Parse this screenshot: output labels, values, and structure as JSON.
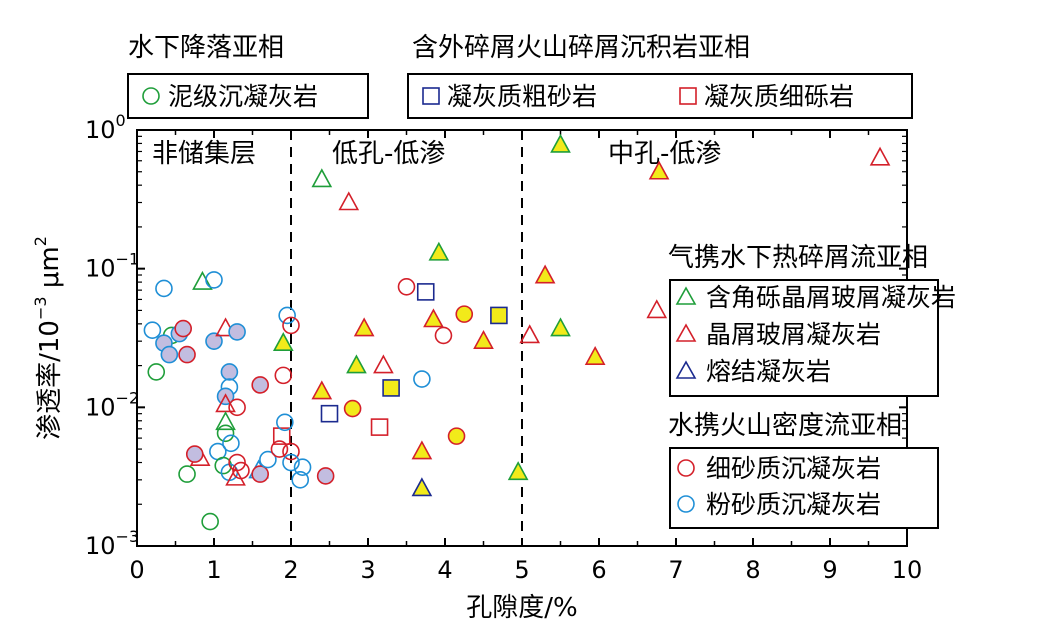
{
  "colors": {
    "green": "#1f9e3a",
    "red": "#d4202a",
    "blue": "#1f8fd6",
    "navy": "#1b2a8f",
    "yellow": "#f2ea1a",
    "lavender": "#c2bde0",
    "axis": "#000000"
  },
  "legend_top": {
    "group1": {
      "title": "水下降落亚相",
      "items": [
        {
          "label": "泥级沉凝灰岩",
          "marker": "circle",
          "color": "#1f9e3a"
        }
      ]
    },
    "group2": {
      "title": "含外碎屑火山碎屑沉积岩亚相",
      "items": [
        {
          "label": "凝灰质粗砂岩",
          "marker": "square",
          "color": "#1b2a8f"
        },
        {
          "label": "凝灰质细砾岩",
          "marker": "square",
          "color": "#d4202a"
        }
      ]
    }
  },
  "legend_right": {
    "group3": {
      "title": "气携水下热碎屑流亚相",
      "items": [
        {
          "label": "含角砾晶屑玻屑凝灰岩",
          "marker": "triangle",
          "color": "#1f9e3a"
        },
        {
          "label": "晶屑玻屑凝灰岩",
          "marker": "triangle",
          "color": "#d4202a"
        },
        {
          "label": "熔结凝灰岩",
          "marker": "triangle",
          "color": "#1b2a8f"
        }
      ]
    },
    "group4": {
      "title": "水携火山密度流亚相",
      "items": [
        {
          "label": "细砂质沉凝灰岩",
          "marker": "circle",
          "color": "#d4202a"
        },
        {
          "label": "粉砂质沉凝灰岩",
          "marker": "circle",
          "color": "#1f8fd6"
        }
      ]
    }
  },
  "regions": {
    "non_reservoir": "非储集层",
    "low_low": "低孔-低渗",
    "mid_low": "中孔-低渗"
  },
  "chart_data": {
    "type": "scatter",
    "xlabel": "孔隙度/%",
    "ylabel": {
      "base": "渗透率/10",
      "exp": "−3",
      "unit_pre": " μm",
      "unit_exp": "2"
    },
    "x_range": [
      0,
      10
    ],
    "y_range": [
      0.001,
      1
    ],
    "y_scale": "log",
    "x_ticks": [
      "0",
      "1",
      "2",
      "3",
      "4",
      "5",
      "6",
      "7",
      "8",
      "9",
      "10"
    ],
    "y_ticks": [
      {
        "base": "10",
        "exp": "−3",
        "value": 0.001
      },
      {
        "base": "10",
        "exp": "−2",
        "value": 0.01
      },
      {
        "base": "10",
        "exp": "−1",
        "value": 0.1
      },
      {
        "base": "10",
        "exp": "0",
        "value": 1
      }
    ],
    "dividers": [
      2,
      5
    ],
    "points": [
      {
        "x": 0.2,
        "y": 0.036,
        "shape": "circle",
        "stroke": "blue",
        "fill": "none"
      },
      {
        "x": 0.35,
        "y": 0.072,
        "shape": "circle",
        "stroke": "blue",
        "fill": "none"
      },
      {
        "x": 0.25,
        "y": 0.018,
        "shape": "circle",
        "stroke": "green",
        "fill": "none"
      },
      {
        "x": 0.45,
        "y": 0.033,
        "shape": "circle",
        "stroke": "green",
        "fill": "none"
      },
      {
        "x": 0.35,
        "y": 0.029,
        "shape": "circle",
        "stroke": "blue",
        "fill": "lavender"
      },
      {
        "x": 0.42,
        "y": 0.024,
        "shape": "circle",
        "stroke": "blue",
        "fill": "lavender"
      },
      {
        "x": 0.55,
        "y": 0.034,
        "shape": "circle",
        "stroke": "blue",
        "fill": "lavender"
      },
      {
        "x": 0.6,
        "y": 0.037,
        "shape": "circle",
        "stroke": "red",
        "fill": "lavender"
      },
      {
        "x": 0.65,
        "y": 0.024,
        "shape": "circle",
        "stroke": "red",
        "fill": "lavender"
      },
      {
        "x": 0.65,
        "y": 0.0033,
        "shape": "circle",
        "stroke": "green",
        "fill": "none"
      },
      {
        "x": 0.85,
        "y": 0.08,
        "shape": "triangle",
        "stroke": "green",
        "fill": "none"
      },
      {
        "x": 1.0,
        "y": 0.083,
        "shape": "circle",
        "stroke": "blue",
        "fill": "none"
      },
      {
        "x": 0.82,
        "y": 0.0043,
        "shape": "triangle",
        "stroke": "red",
        "fill": "none"
      },
      {
        "x": 0.75,
        "y": 0.0046,
        "shape": "circle",
        "stroke": "red",
        "fill": "lavender"
      },
      {
        "x": 0.95,
        "y": 0.0015,
        "shape": "circle",
        "stroke": "green",
        "fill": "none"
      },
      {
        "x": 1.0,
        "y": 0.03,
        "shape": "circle",
        "stroke": "blue",
        "fill": "lavender"
      },
      {
        "x": 1.15,
        "y": 0.037,
        "shape": "triangle",
        "stroke": "red",
        "fill": "none"
      },
      {
        "x": 1.3,
        "y": 0.035,
        "shape": "circle",
        "stroke": "blue",
        "fill": "lavender"
      },
      {
        "x": 1.2,
        "y": 0.018,
        "shape": "circle",
        "stroke": "blue",
        "fill": "lavender"
      },
      {
        "x": 1.2,
        "y": 0.014,
        "shape": "circle",
        "stroke": "blue",
        "fill": "none"
      },
      {
        "x": 1.15,
        "y": 0.012,
        "shape": "circle",
        "stroke": "blue",
        "fill": "lavender"
      },
      {
        "x": 1.15,
        "y": 0.0105,
        "shape": "triangle",
        "stroke": "red",
        "fill": "none"
      },
      {
        "x": 1.3,
        "y": 0.01,
        "shape": "circle",
        "stroke": "red",
        "fill": "none"
      },
      {
        "x": 1.15,
        "y": 0.0078,
        "shape": "triangle",
        "stroke": "green",
        "fill": "none"
      },
      {
        "x": 1.15,
        "y": 0.0065,
        "shape": "circle",
        "stroke": "green",
        "fill": "none"
      },
      {
        "x": 1.22,
        "y": 0.0055,
        "shape": "circle",
        "stroke": "blue",
        "fill": "none"
      },
      {
        "x": 1.05,
        "y": 0.0048,
        "shape": "circle",
        "stroke": "blue",
        "fill": "none"
      },
      {
        "x": 1.12,
        "y": 0.0038,
        "shape": "circle",
        "stroke": "green",
        "fill": "none"
      },
      {
        "x": 1.2,
        "y": 0.0034,
        "shape": "circle",
        "stroke": "blue",
        "fill": "none"
      },
      {
        "x": 1.28,
        "y": 0.0031,
        "shape": "triangle",
        "stroke": "red",
        "fill": "none"
      },
      {
        "x": 1.3,
        "y": 0.004,
        "shape": "circle",
        "stroke": "red",
        "fill": "none"
      },
      {
        "x": 1.35,
        "y": 0.0035,
        "shape": "circle",
        "stroke": "red",
        "fill": "none"
      },
      {
        "x": 1.58,
        "y": 0.0035,
        "shape": "triangle",
        "stroke": "blue",
        "fill": "none"
      },
      {
        "x": 1.6,
        "y": 0.0033,
        "shape": "circle",
        "stroke": "red",
        "fill": "lavender"
      },
      {
        "x": 1.6,
        "y": 0.0145,
        "shape": "circle",
        "stroke": "red",
        "fill": "lavender"
      },
      {
        "x": 1.7,
        "y": 0.0042,
        "shape": "circle",
        "stroke": "blue",
        "fill": "none"
      },
      {
        "x": 1.85,
        "y": 0.005,
        "shape": "circle",
        "stroke": "red",
        "fill": "none"
      },
      {
        "x": 1.88,
        "y": 0.0062,
        "shape": "square",
        "stroke": "red",
        "fill": "none"
      },
      {
        "x": 1.9,
        "y": 0.017,
        "shape": "circle",
        "stroke": "red",
        "fill": "none"
      },
      {
        "x": 1.92,
        "y": 0.0078,
        "shape": "circle",
        "stroke": "blue",
        "fill": "none"
      },
      {
        "x": 1.9,
        "y": 0.029,
        "shape": "triangle",
        "stroke": "green",
        "fill": "yellow"
      },
      {
        "x": 1.95,
        "y": 0.046,
        "shape": "circle",
        "stroke": "blue",
        "fill": "none"
      },
      {
        "x": 2.0,
        "y": 0.039,
        "shape": "circle",
        "stroke": "red",
        "fill": "none"
      },
      {
        "x": 2.0,
        "y": 0.0048,
        "shape": "circle",
        "stroke": "red",
        "fill": "none"
      },
      {
        "x": 2.0,
        "y": 0.004,
        "shape": "circle",
        "stroke": "blue",
        "fill": "none"
      },
      {
        "x": 2.15,
        "y": 0.0037,
        "shape": "circle",
        "stroke": "blue",
        "fill": "none"
      },
      {
        "x": 2.12,
        "y": 0.003,
        "shape": "circle",
        "stroke": "blue",
        "fill": "none"
      },
      {
        "x": 2.4,
        "y": 0.44,
        "shape": "triangle",
        "stroke": "green",
        "fill": "none"
      },
      {
        "x": 2.75,
        "y": 0.3,
        "shape": "triangle",
        "stroke": "red",
        "fill": "none"
      },
      {
        "x": 2.4,
        "y": 0.013,
        "shape": "triangle",
        "stroke": "red",
        "fill": "yellow"
      },
      {
        "x": 2.5,
        "y": 0.009,
        "shape": "square",
        "stroke": "navy",
        "fill": "none"
      },
      {
        "x": 2.45,
        "y": 0.0032,
        "shape": "circle",
        "stroke": "red",
        "fill": "lavender"
      },
      {
        "x": 2.8,
        "y": 0.0098,
        "shape": "circle",
        "stroke": "red",
        "fill": "yellow"
      },
      {
        "x": 2.85,
        "y": 0.02,
        "shape": "triangle",
        "stroke": "green",
        "fill": "yellow"
      },
      {
        "x": 2.95,
        "y": 0.037,
        "shape": "triangle",
        "stroke": "red",
        "fill": "yellow"
      },
      {
        "x": 3.2,
        "y": 0.02,
        "shape": "triangle",
        "stroke": "red",
        "fill": "none"
      },
      {
        "x": 3.3,
        "y": 0.0138,
        "shape": "square",
        "stroke": "navy",
        "fill": "yellow"
      },
      {
        "x": 3.15,
        "y": 0.0072,
        "shape": "square",
        "stroke": "red",
        "fill": "none"
      },
      {
        "x": 3.5,
        "y": 0.074,
        "shape": "circle",
        "stroke": "red",
        "fill": "none"
      },
      {
        "x": 3.7,
        "y": 0.016,
        "shape": "circle",
        "stroke": "blue",
        "fill": "none"
      },
      {
        "x": 3.75,
        "y": 0.068,
        "shape": "square",
        "stroke": "navy",
        "fill": "none"
      },
      {
        "x": 3.7,
        "y": 0.0048,
        "shape": "triangle",
        "stroke": "red",
        "fill": "yellow"
      },
      {
        "x": 3.7,
        "y": 0.0026,
        "shape": "triangle",
        "stroke": "navy",
        "fill": "yellow"
      },
      {
        "x": 3.85,
        "y": 0.043,
        "shape": "triangle",
        "stroke": "red",
        "fill": "yellow"
      },
      {
        "x": 3.92,
        "y": 0.13,
        "shape": "triangle",
        "stroke": "green",
        "fill": "yellow"
      },
      {
        "x": 3.98,
        "y": 0.033,
        "shape": "circle",
        "stroke": "red",
        "fill": "none"
      },
      {
        "x": 4.15,
        "y": 0.0062,
        "shape": "circle",
        "stroke": "red",
        "fill": "yellow"
      },
      {
        "x": 4.25,
        "y": 0.047,
        "shape": "circle",
        "stroke": "red",
        "fill": "yellow"
      },
      {
        "x": 4.5,
        "y": 0.03,
        "shape": "triangle",
        "stroke": "red",
        "fill": "yellow"
      },
      {
        "x": 4.7,
        "y": 0.046,
        "shape": "square",
        "stroke": "navy",
        "fill": "yellow"
      },
      {
        "x": 4.95,
        "y": 0.0034,
        "shape": "triangle",
        "stroke": "green",
        "fill": "yellow"
      },
      {
        "x": 5.1,
        "y": 0.033,
        "shape": "triangle",
        "stroke": "red",
        "fill": "none"
      },
      {
        "x": 5.3,
        "y": 0.089,
        "shape": "triangle",
        "stroke": "red",
        "fill": "yellow"
      },
      {
        "x": 5.5,
        "y": 0.037,
        "shape": "triangle",
        "stroke": "green",
        "fill": "yellow"
      },
      {
        "x": 5.5,
        "y": 0.78,
        "shape": "triangle",
        "stroke": "green",
        "fill": "yellow"
      },
      {
        "x": 5.95,
        "y": 0.023,
        "shape": "triangle",
        "stroke": "red",
        "fill": "yellow"
      },
      {
        "x": 6.75,
        "y": 0.05,
        "shape": "triangle",
        "stroke": "red",
        "fill": "none"
      },
      {
        "x": 6.78,
        "y": 0.5,
        "shape": "triangle",
        "stroke": "red",
        "fill": "yellow"
      },
      {
        "x": 9.65,
        "y": 0.63,
        "shape": "triangle",
        "stroke": "red",
        "fill": "none"
      }
    ]
  }
}
